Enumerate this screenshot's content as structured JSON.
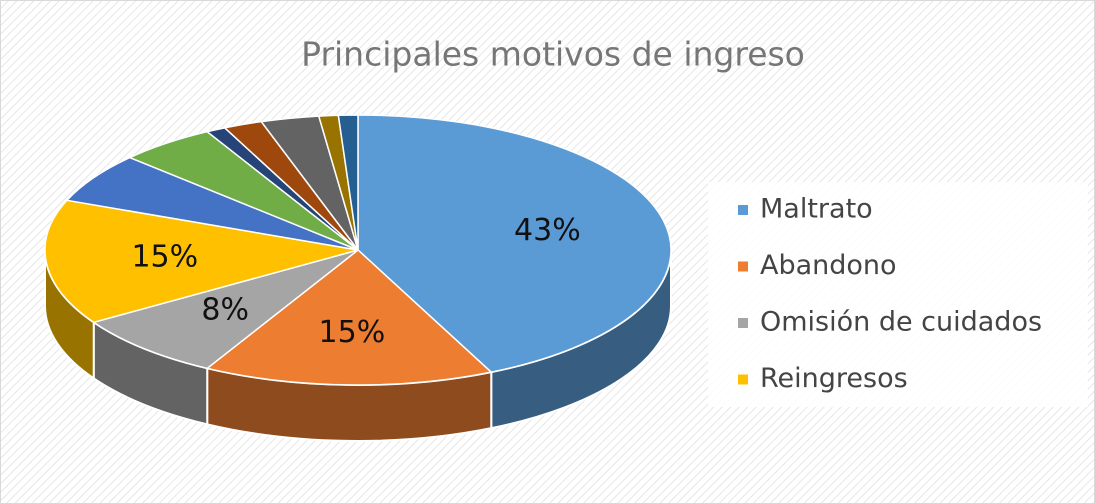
{
  "chart_data": {
    "type": "pie3d",
    "title": "Principales motivos de ingreso",
    "categories": [
      "Maltrato",
      "Abandono",
      "Omisión de cuidados",
      "Reingresos",
      null,
      null,
      null,
      null,
      null,
      null,
      null
    ],
    "values": [
      43,
      15,
      8,
      15,
      6,
      5,
      1,
      2,
      3,
      1,
      1
    ],
    "value_labels": [
      "43%",
      "15%",
      "8%",
      "15%",
      null,
      null,
      null,
      null,
      null,
      null,
      null
    ],
    "colors": [
      "#5b9bd5",
      "#ed7d31",
      "#a5a5a5",
      "#ffc000",
      "#4472c4",
      "#70ad47",
      "#264478",
      "#9e480e",
      "#636363",
      "#997300",
      "#255e91"
    ],
    "legend": "right"
  }
}
